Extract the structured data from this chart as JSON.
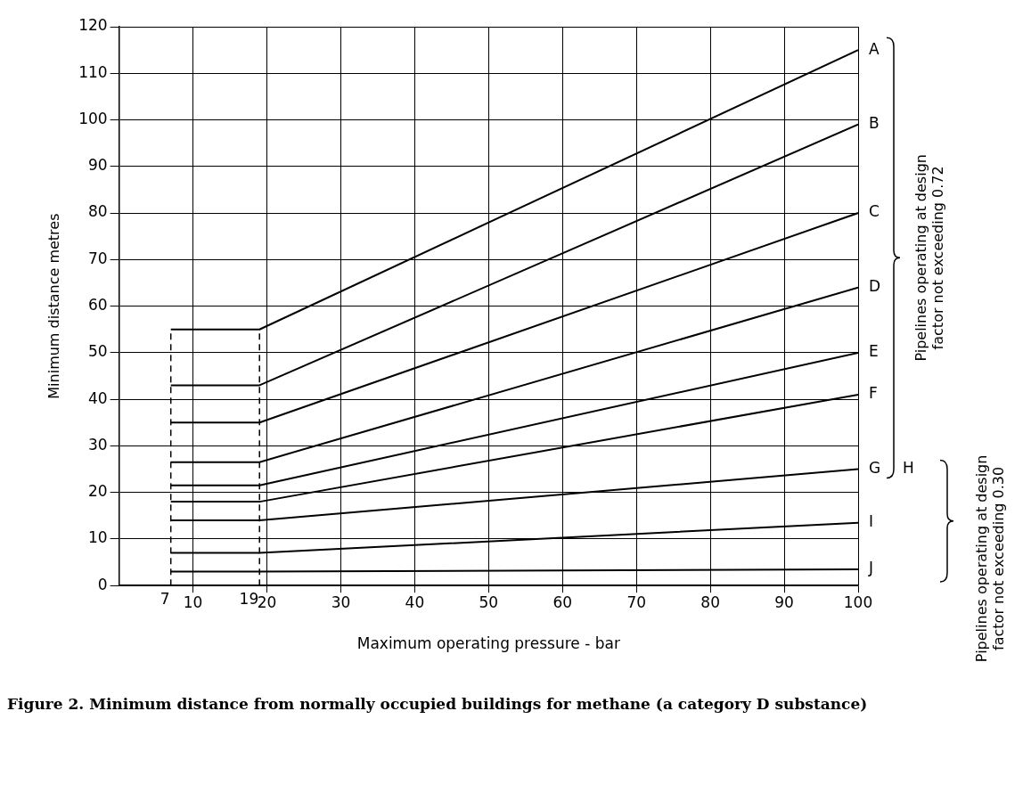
{
  "chart_data": {
    "type": "line",
    "xlabel": "Maximum operating pressure - bar",
    "ylabel": "Minimum distance metres",
    "x": [
      7,
      19,
      100
    ],
    "series": [
      {
        "name": "A",
        "color": "#000000",
        "values": [
          55,
          55,
          115
        ]
      },
      {
        "name": "B",
        "color": "#000000",
        "values": [
          43,
          43,
          99
        ]
      },
      {
        "name": "C",
        "color": "#000000",
        "values": [
          35,
          35,
          80
        ]
      },
      {
        "name": "D",
        "color": "#000000",
        "values": [
          26.5,
          26.5,
          64
        ]
      },
      {
        "name": "E",
        "color": "#000000",
        "values": [
          21.5,
          21.5,
          50
        ]
      },
      {
        "name": "F",
        "color": "#000000",
        "values": [
          18,
          18,
          41
        ]
      },
      {
        "name": "G",
        "color": "#000000",
        "values": [
          14,
          14,
          25
        ]
      },
      {
        "name": "I",
        "color": "#000000",
        "values": [
          7,
          7,
          13.5
        ]
      },
      {
        "name": "J",
        "color": "#000000",
        "values": [
          3,
          3,
          3.5
        ]
      }
    ],
    "xlim": [
      0,
      100
    ],
    "xticks": [
      10,
      20,
      30,
      40,
      50,
      60,
      70,
      80,
      90,
      100
    ],
    "ylim": [
      0,
      120
    ],
    "yticks": [
      0,
      10,
      20,
      30,
      40,
      50,
      60,
      70,
      80,
      90,
      100,
      110,
      120
    ],
    "ref_lines": [
      {
        "axis": "x",
        "value": 7,
        "label": "7",
        "line_style": "dashed"
      },
      {
        "axis": "x",
        "value": 19,
        "label": "19",
        "line_style": "dashed"
      }
    ],
    "annotations": [
      "Pipelines operating at design factor not exceeding 0.72",
      "Pipelines operating at design factor not exceeding 0.30",
      {
        "text": "H",
        "x": 100,
        "y": 25
      },
      "Figure 2. Minimum distance from normally occupied buildings for methane (a category D substance)"
    ],
    "grid": true,
    "legend": false,
    "marker": "none",
    "line_style": "solid"
  }
}
